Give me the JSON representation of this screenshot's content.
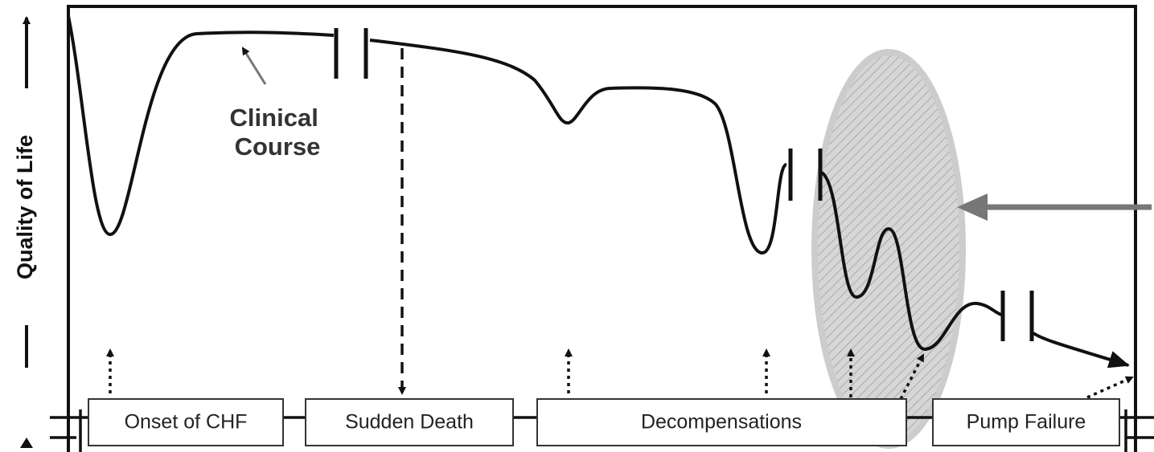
{
  "axis_label": "Quality of Life",
  "annotation": "Clinical Course",
  "boxes": [
    "Onset of CHF",
    "Sudden Death",
    "Decompensations",
    "Pump Failure"
  ]
}
